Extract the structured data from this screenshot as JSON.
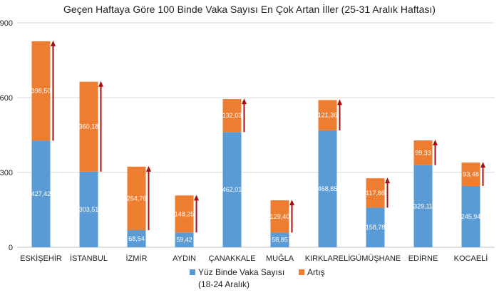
{
  "chart_data": {
    "type": "bar",
    "stacked": true,
    "title": "Geçen Haftaya Göre 100 Binde Vaka Sayısı En Çok Artan İller (25-31 Aralık Haftası)",
    "categories": [
      "ESKİŞEHİR",
      "İSTANBUL",
      "İZMİR",
      "AYDIN",
      "ÇANAKKALE",
      "MUĞLA",
      "KIRKLARELİ",
      "GÜMÜŞHANE",
      "EDİRNE",
      "KOCAELİ"
    ],
    "series": [
      {
        "name": "Yüz Binde Vaka Sayısı (18-24 Aralık)",
        "legend_lines": [
          "Yüz Binde Vaka Sayısı",
          "(18-24 Aralık)"
        ],
        "color": "#5B9BD5",
        "values": [
          427.42,
          303.51,
          68.54,
          59.42,
          462.01,
          58.85,
          468.85,
          158.78,
          329.11,
          245.94
        ],
        "labels": [
          "427,42",
          "303,51",
          "68,54",
          "59,42",
          "462,01",
          "58,85",
          "468,85",
          "158,78",
          "329,11",
          "245,94"
        ]
      },
      {
        "name": "Artış",
        "legend_lines": [
          "Artış"
        ],
        "color": "#ED7D31",
        "values": [
          398.5,
          360.18,
          254.76,
          148.25,
          132.03,
          129.4,
          121.36,
          117.86,
          99.33,
          93.48
        ],
        "labels": [
          "398,50",
          "360,18",
          "254,76",
          "148,25",
          "132,03",
          "129,40",
          "121,36",
          "117,86",
          "99,33",
          "93,48"
        ]
      }
    ],
    "arrow_color": "#A50F0F",
    "ylim": [
      0,
      900
    ],
    "yticks": [
      0,
      300,
      600,
      900
    ],
    "ytick_labels": [
      "0",
      "300",
      "600",
      "900"
    ],
    "grid": true,
    "legend_position": "bottom",
    "xlabel": "",
    "ylabel": ""
  }
}
